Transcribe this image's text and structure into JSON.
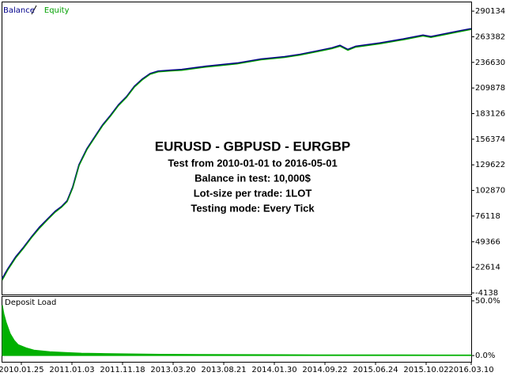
{
  "chart_data": [
    {
      "type": "line",
      "series": [
        {
          "name": "Balance",
          "color": "#00008b",
          "x": [
            0,
            7,
            17,
            27,
            37,
            47,
            57,
            67,
            75,
            82,
            89,
            97,
            107,
            117,
            127,
            137,
            147,
            157,
            167,
            177,
            187,
            197,
            212,
            227,
            257,
            297,
            327,
            357,
            377,
            397,
            417,
            427,
            437,
            447,
            477,
            507,
            532,
            542,
            557,
            577,
            593
          ],
          "values": [
            10900,
            20900,
            33500,
            43500,
            54400,
            64400,
            72800,
            81100,
            86100,
            92000,
            106200,
            129600,
            146300,
            158900,
            171400,
            181400,
            192300,
            200700,
            211500,
            219100,
            224900,
            227400,
            228300,
            229100,
            232400,
            235800,
            240000,
            242500,
            245000,
            248300,
            251700,
            254200,
            250000,
            253300,
            256700,
            260900,
            265000,
            263400,
            265900,
            269200,
            271700
          ]
        },
        {
          "name": "Equity",
          "color": "#00a000",
          "x": [
            0,
            7,
            17,
            27,
            37,
            47,
            57,
            67,
            75,
            82,
            89,
            97,
            107,
            117,
            127,
            137,
            147,
            157,
            167,
            177,
            187,
            197,
            212,
            227,
            257,
            297,
            327,
            357,
            377,
            397,
            417,
            427,
            437,
            447,
            477,
            507,
            532,
            542,
            557,
            577,
            593
          ],
          "values": [
            9200,
            19800,
            32400,
            42600,
            53500,
            63300,
            71900,
            80200,
            85300,
            91100,
            105300,
            128700,
            145400,
            158100,
            170600,
            180600,
            191500,
            199900,
            210700,
            218300,
            224100,
            226600,
            227500,
            228300,
            231600,
            235000,
            239200,
            241700,
            244200,
            247500,
            250900,
            253400,
            249200,
            252500,
            255900,
            260100,
            264200,
            262600,
            265100,
            268400,
            270900
          ]
        }
      ],
      "xlim": [
        0,
        593
      ],
      "ylim": [
        -5800,
        299300
      ],
      "yticks": [
        -4138,
        22614,
        49366,
        76118,
        102870,
        129622,
        156374,
        183126,
        209878,
        236630,
        263382,
        290134
      ],
      "annotations": [
        "EURUSD - GBPUSD - EURGBP",
        "Test from 2010-01-01 to 2016-05-01",
        "Balance in test: 10,000$",
        "Lot-size per trade: 1LOT",
        "Testing mode: Every Tick"
      ],
      "grid": false
    },
    {
      "type": "area",
      "title": "Deposit Load",
      "color": "#00b000",
      "x": [
        0,
        2,
        5,
        10,
        15,
        20,
        30,
        40,
        60,
        80,
        100,
        130,
        160,
        200,
        250,
        300,
        350,
        400,
        450,
        500,
        550,
        593
      ],
      "values": [
        46,
        38,
        30,
        20,
        14,
        10,
        7,
        5,
        3.5,
        2.8,
        2.2,
        1.8,
        1.5,
        1.2,
        1,
        0.9,
        0.8,
        0.7,
        0.6,
        0.6,
        0.5,
        0.5
      ],
      "xlim": [
        0,
        593
      ],
      "ylim": [
        -5.7,
        53.6
      ],
      "yticks": [
        {
          "value": 50,
          "label": "50.0%"
        },
        {
          "value": 0,
          "label": "0.0%"
        }
      ],
      "xticks": [
        {
          "value": 24,
          "label": "2010.01.25"
        },
        {
          "value": 88,
          "label": "2011.01.03"
        },
        {
          "value": 152,
          "label": "2011.11.18"
        },
        {
          "value": 216,
          "label": "2013.03.20"
        },
        {
          "value": 280,
          "label": "2013.08.21"
        },
        {
          "value": 344,
          "label": "2014.01.30"
        },
        {
          "value": 408,
          "label": "2014.09.22"
        },
        {
          "value": 472,
          "label": "2015.06.24"
        },
        {
          "value": 536,
          "label": "2015.10.02"
        },
        {
          "value": 593,
          "label": "2016.03.10"
        }
      ]
    }
  ]
}
